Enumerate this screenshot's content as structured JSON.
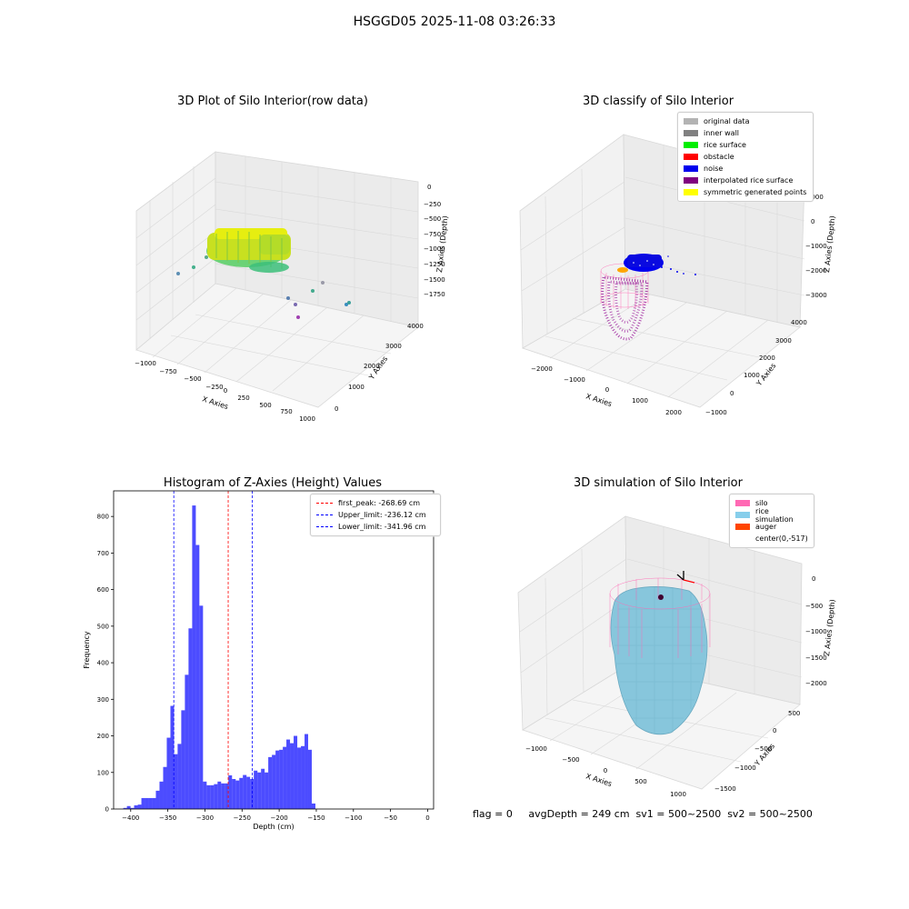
{
  "suptitle": "HSGGD05 2025-11-08 03:26:33",
  "panels": {
    "raw": {
      "title": "3D Plot of Silo Interior(row data)",
      "xlabel": "X Axies",
      "ylabel": "Y Axies",
      "zlabel": "Z Axies (Depth)",
      "xticks": [
        "−1000",
        "−750",
        "−500",
        "−250",
        "0",
        "250",
        "500",
        "750",
        "1000"
      ],
      "yticks": [
        "0",
        "1000",
        "2000",
        "3000",
        "4000"
      ],
      "zticks": [
        "0",
        "−250",
        "−500",
        "−750",
        "−1000",
        "−1250",
        "−1500",
        "−1750"
      ]
    },
    "classify": {
      "title": "3D classify of Silo Interior",
      "xlabel": "X Axies",
      "ylabel": "Y Axies",
      "zlabel": "Z Axies (Depth)",
      "xticks": [
        "−2000",
        "−1000",
        "0",
        "1000",
        "2000"
      ],
      "yticks": [
        "−1000",
        "0",
        "1000",
        "2000",
        "3000",
        "4000"
      ],
      "zticks": [
        "1000",
        "0",
        "−1000",
        "−2000",
        "−3000"
      ],
      "legend": [
        {
          "label": "original data",
          "color": "#b3b3b3"
        },
        {
          "label": "inner wall",
          "color": "#808080"
        },
        {
          "label": "rice surface",
          "color": "#00ee00"
        },
        {
          "label": "obstacle",
          "color": "#ff0000"
        },
        {
          "label": "noise",
          "color": "#0000ee"
        },
        {
          "label": "interpolated rice surface",
          "color": "#800080"
        },
        {
          "label": "symmetric generated points",
          "color": "#ffff00"
        }
      ]
    },
    "simulation": {
      "title": "3D simulation of Silo Interior",
      "xlabel": "X Axies",
      "ylabel": "Y Axies",
      "zlabel": "Z Axies (Depth)",
      "xticks": [
        "−1000",
        "−500",
        "0",
        "500",
        "1000"
      ],
      "yticks": [
        "500",
        "0",
        "−500",
        "−1000",
        "−1500"
      ],
      "zticks": [
        "0",
        "−500",
        "−1000",
        "−1500",
        "−2000"
      ],
      "legend": [
        {
          "label": "silo",
          "color": "#ff69b4"
        },
        {
          "label": "rice simulation",
          "color": "#87ceeb"
        },
        {
          "label": "auger",
          "color": "#ff4500"
        },
        {
          "label": "center(0,-517)",
          "color": "#ffffff"
        }
      ]
    }
  },
  "status": {
    "flag": "flag = 0",
    "avg": "avgDepth = 249 cm  sv1 = 500~2500  sv2 = 500~2500"
  },
  "chart_data": {
    "type": "bar",
    "title": "Histogram of Z-Axies (Height) Values",
    "xlabel": "Depth (cm)",
    "ylabel": "Frequency",
    "xlim": [
      -423,
      8
    ],
    "ylim": [
      0,
      870
    ],
    "xticks": [
      -400,
      -350,
      -300,
      -250,
      -200,
      -150,
      -100,
      -50,
      0
    ],
    "yticks": [
      0,
      100,
      200,
      300,
      400,
      500,
      600,
      700,
      800
    ],
    "bar_color": "#0000ff",
    "bins": [
      {
        "x0": -410.0,
        "x1": -405.1,
        "v": 3
      },
      {
        "x0": -405.1,
        "x1": -400.2,
        "v": 8
      },
      {
        "x0": -400.2,
        "x1": -395.4,
        "v": 3
      },
      {
        "x0": -395.4,
        "x1": -390.5,
        "v": 10
      },
      {
        "x0": -390.5,
        "x1": -385.6,
        "v": 12
      },
      {
        "x0": -385.6,
        "x1": -380.7,
        "v": 30
      },
      {
        "x0": -380.7,
        "x1": -375.8,
        "v": 30
      },
      {
        "x0": -375.8,
        "x1": -370.9,
        "v": 30
      },
      {
        "x0": -370.9,
        "x1": -366.1,
        "v": 30
      },
      {
        "x0": -366.1,
        "x1": -361.2,
        "v": 50
      },
      {
        "x0": -361.2,
        "x1": -356.3,
        "v": 75
      },
      {
        "x0": -356.3,
        "x1": -351.4,
        "v": 115
      },
      {
        "x0": -351.4,
        "x1": -346.5,
        "v": 195
      },
      {
        "x0": -346.5,
        "x1": -341.6,
        "v": 282
      },
      {
        "x0": -341.6,
        "x1": -336.8,
        "v": 150
      },
      {
        "x0": -336.8,
        "x1": -331.9,
        "v": 178
      },
      {
        "x0": -331.9,
        "x1": -327.0,
        "v": 270
      },
      {
        "x0": -327.0,
        "x1": -322.1,
        "v": 367
      },
      {
        "x0": -322.1,
        "x1": -317.2,
        "v": 494
      },
      {
        "x0": -317.2,
        "x1": -312.3,
        "v": 830
      },
      {
        "x0": -312.3,
        "x1": -307.5,
        "v": 722
      },
      {
        "x0": -307.5,
        "x1": -302.6,
        "v": 556
      },
      {
        "x0": -302.6,
        "x1": -297.7,
        "v": 75
      },
      {
        "x0": -297.7,
        "x1": -292.8,
        "v": 65
      },
      {
        "x0": -292.8,
        "x1": -287.9,
        "v": 65
      },
      {
        "x0": -287.9,
        "x1": -283.0,
        "v": 68
      },
      {
        "x0": -283.0,
        "x1": -278.2,
        "v": 75
      },
      {
        "x0": -278.2,
        "x1": -273.3,
        "v": 70
      },
      {
        "x0": -273.3,
        "x1": -268.4,
        "v": 70
      },
      {
        "x0": -268.4,
        "x1": -263.5,
        "v": 92
      },
      {
        "x0": -263.5,
        "x1": -258.6,
        "v": 82
      },
      {
        "x0": -258.6,
        "x1": -253.7,
        "v": 78
      },
      {
        "x0": -253.7,
        "x1": -248.9,
        "v": 85
      },
      {
        "x0": -248.9,
        "x1": -244.0,
        "v": 93
      },
      {
        "x0": -244.0,
        "x1": -239.1,
        "v": 88
      },
      {
        "x0": -239.1,
        "x1": -234.2,
        "v": 82
      },
      {
        "x0": -234.2,
        "x1": -229.3,
        "v": 105
      },
      {
        "x0": -229.3,
        "x1": -224.4,
        "v": 100
      },
      {
        "x0": -224.4,
        "x1": -219.6,
        "v": 110
      },
      {
        "x0": -219.6,
        "x1": -214.7,
        "v": 100
      },
      {
        "x0": -214.7,
        "x1": -209.8,
        "v": 142
      },
      {
        "x0": -209.8,
        "x1": -204.9,
        "v": 148
      },
      {
        "x0": -204.9,
        "x1": -200.0,
        "v": 160
      },
      {
        "x0": -200.0,
        "x1": -195.1,
        "v": 162
      },
      {
        "x0": -195.1,
        "x1": -190.3,
        "v": 170
      },
      {
        "x0": -190.3,
        "x1": -185.4,
        "v": 190
      },
      {
        "x0": -185.4,
        "x1": -180.5,
        "v": 180
      },
      {
        "x0": -180.5,
        "x1": -175.6,
        "v": 200
      },
      {
        "x0": -175.6,
        "x1": -170.7,
        "v": 168
      },
      {
        "x0": -170.7,
        "x1": -165.8,
        "v": 172
      },
      {
        "x0": -165.8,
        "x1": -161.0,
        "v": 205
      },
      {
        "x0": -161.0,
        "x1": -156.1,
        "v": 162
      },
      {
        "x0": -156.1,
        "x1": -151.2,
        "v": 15
      }
    ],
    "lines": [
      {
        "label": "first_peak: -268.69 cm",
        "x": -268.69,
        "color": "#ff0000"
      },
      {
        "label": "Upper_limit: -236.12 cm",
        "x": -236.12,
        "color": "#0000ff"
      },
      {
        "label": "Lower_limit: -341.96 cm",
        "x": -341.96,
        "color": "#0000ff"
      }
    ]
  }
}
